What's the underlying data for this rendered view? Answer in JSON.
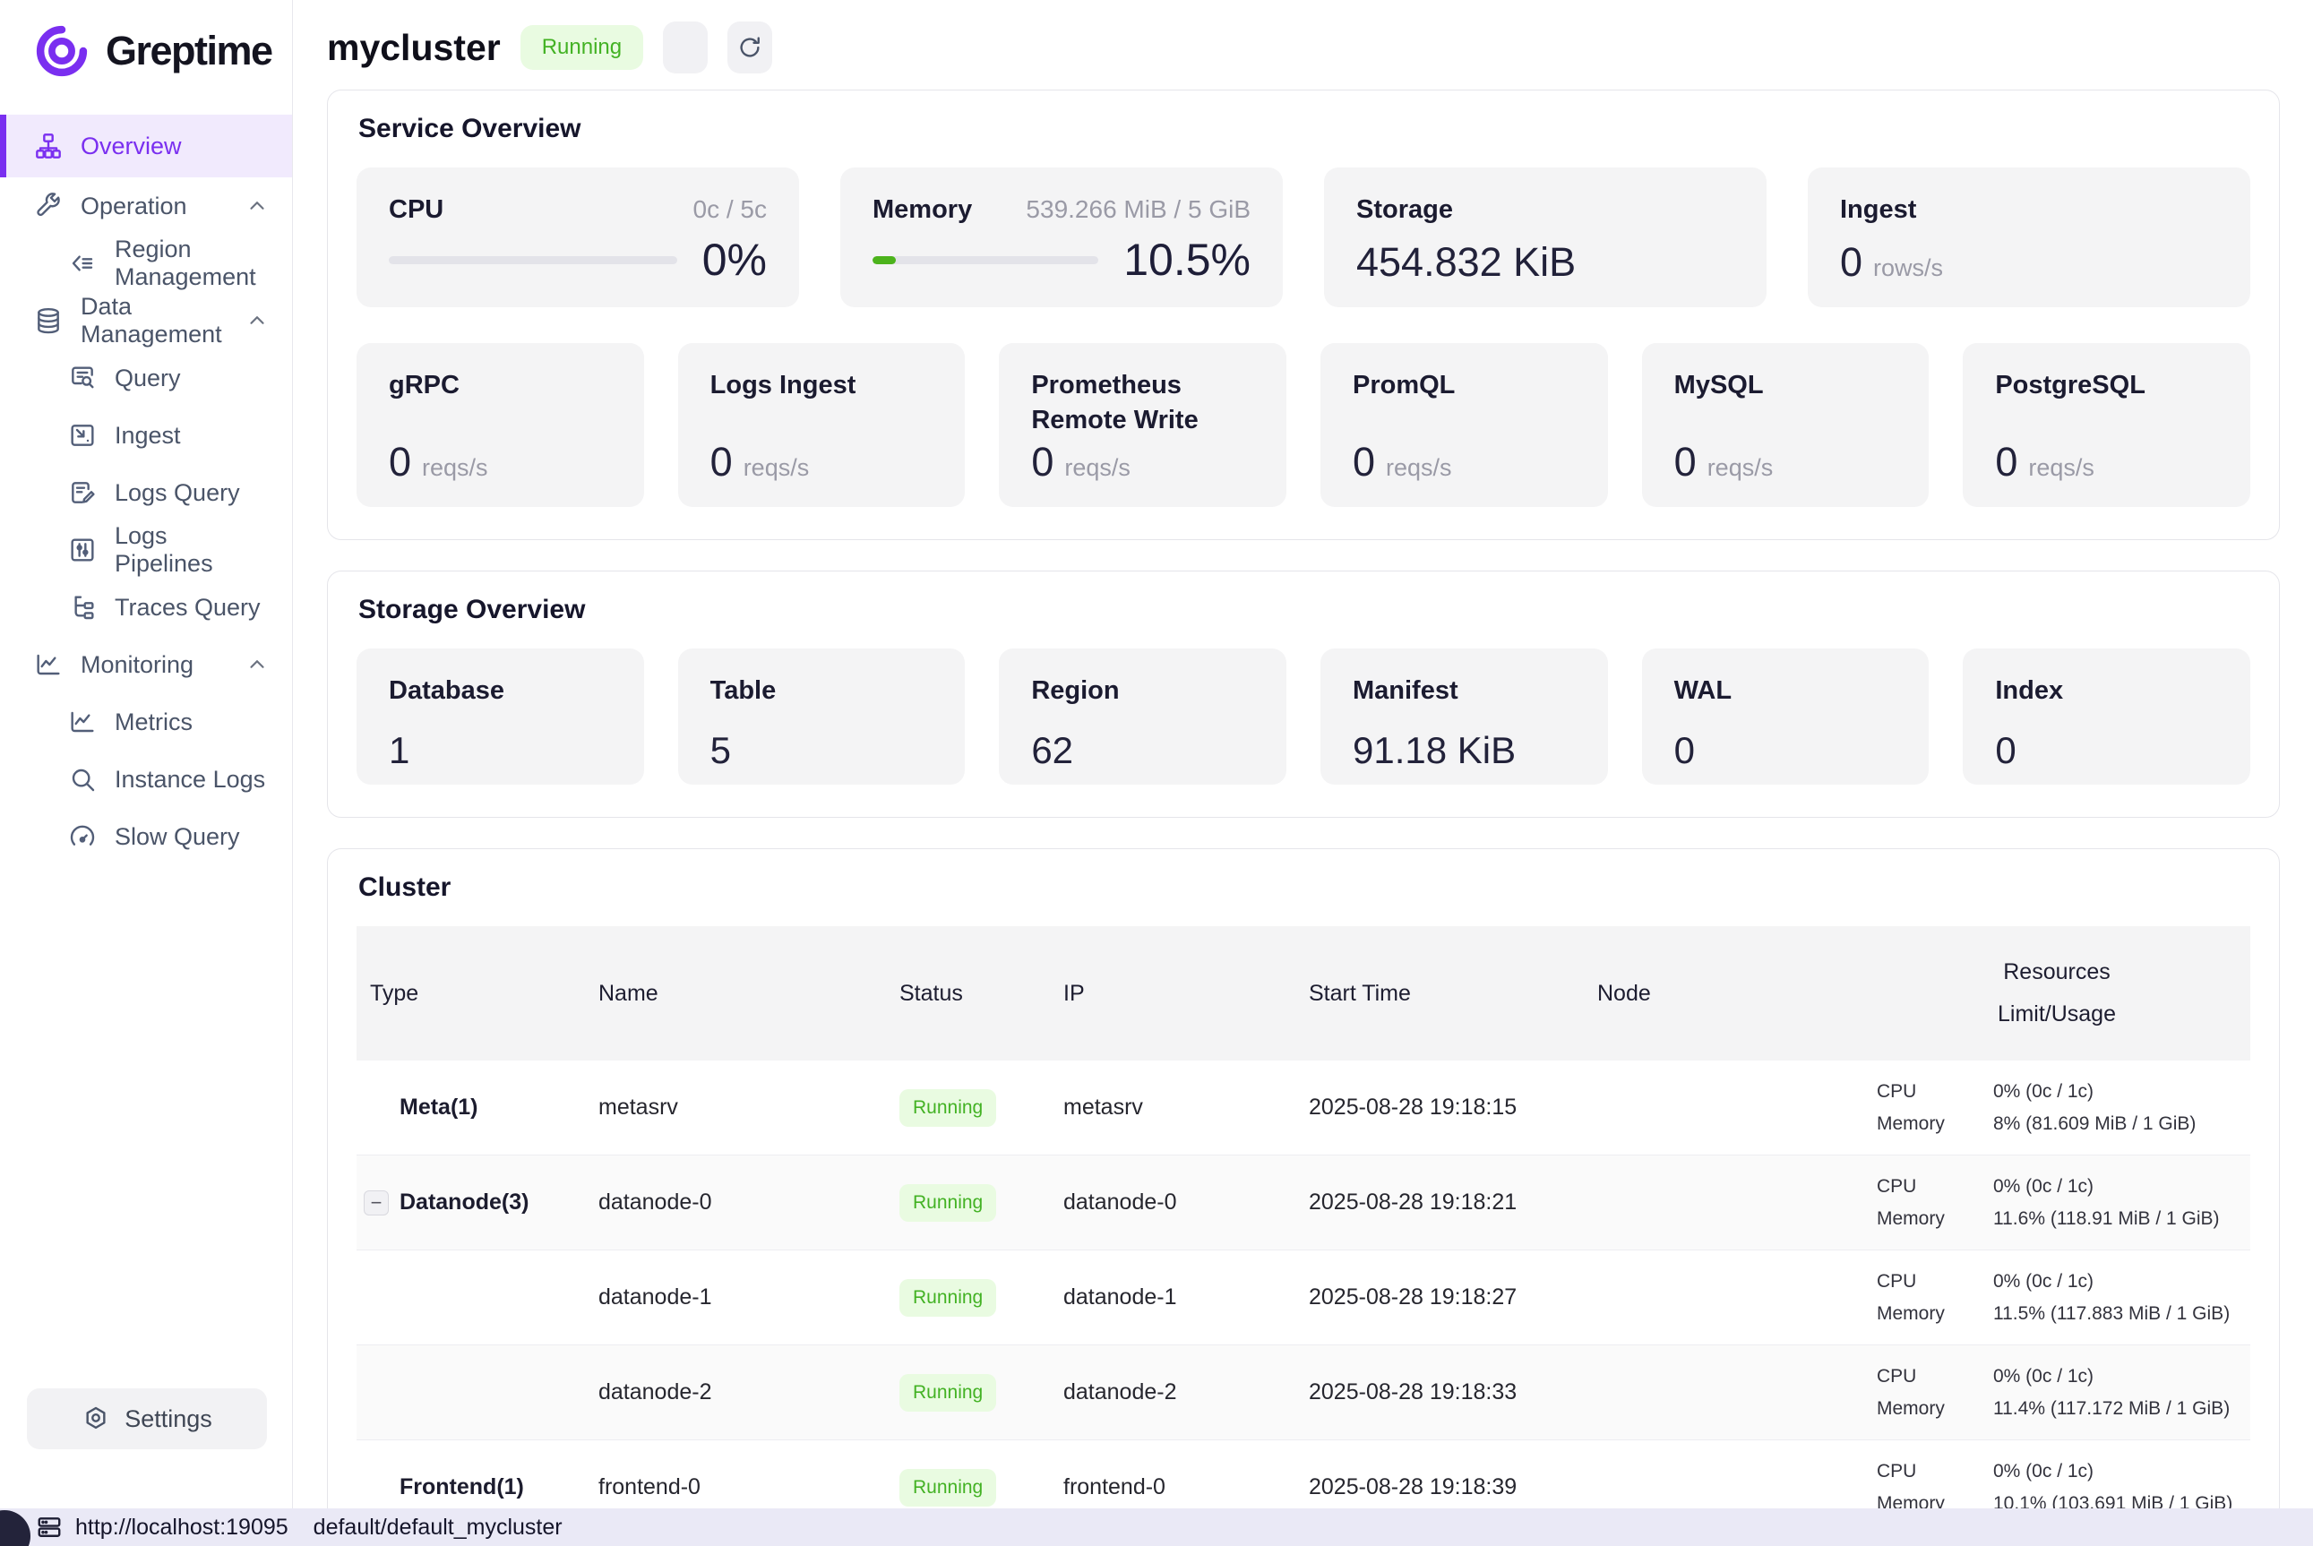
{
  "colors": {
    "accent_purple": "#7a2ff0",
    "accent_purple_bg": "#f1eafd",
    "status_green": "#43b224",
    "status_green_bg": "#e9fbe1",
    "progress_green": "#4cb31c",
    "card_bg": "#f4f4f5",
    "statusbar_bg": "#eae9f6"
  },
  "sidebar": {
    "logo_text": "Greptime",
    "logo_icon": "greptime-spiral-icon",
    "items": [
      {
        "label": "Overview",
        "icon": "sitemap-icon"
      },
      {
        "label": "Operation",
        "icon": "wrench-icon"
      },
      {
        "label": "Region Management",
        "icon": "region-icon"
      },
      {
        "label": "Data Management",
        "icon": "database-icon"
      },
      {
        "label": "Query",
        "icon": "doc-search-icon"
      },
      {
        "label": "Ingest",
        "icon": "ingest-icon"
      },
      {
        "label": "Logs Query",
        "icon": "doc-edit-icon"
      },
      {
        "label": "Logs Pipelines",
        "icon": "sliders-icon"
      },
      {
        "label": "Traces Query",
        "icon": "trace-tree-icon"
      },
      {
        "label": "Monitoring",
        "icon": "line-chart-icon"
      },
      {
        "label": "Metrics",
        "icon": "line-chart-icon"
      },
      {
        "label": "Instance Logs",
        "icon": "search-icon"
      },
      {
        "label": "Slow Query",
        "icon": "gauge-icon"
      }
    ],
    "settings_label": "Settings"
  },
  "header": {
    "title": "mycluster",
    "status_badge": "Running"
  },
  "service_overview": {
    "title": "Service Overview",
    "gauges": [
      {
        "title": "CPU",
        "limit": "0c / 5c",
        "percent_text": "0%",
        "percent": 0
      },
      {
        "title": "Memory",
        "limit": "539.266 MiB / 5 GiB",
        "percent_text": "10.5%",
        "percent": 10.5
      }
    ],
    "stats": [
      {
        "title": "Storage",
        "value": "454.832 KiB",
        "unit": ""
      },
      {
        "title": "Ingest",
        "value": "0",
        "unit": "rows/s"
      }
    ],
    "rates": [
      {
        "title": "gRPC",
        "value": "0",
        "unit": "reqs/s"
      },
      {
        "title": "Logs Ingest",
        "value": "0",
        "unit": "reqs/s"
      },
      {
        "title": "Prometheus Remote Write",
        "value": "0",
        "unit": "reqs/s"
      },
      {
        "title": "PromQL",
        "value": "0",
        "unit": "reqs/s"
      },
      {
        "title": "MySQL",
        "value": "0",
        "unit": "reqs/s"
      },
      {
        "title": "PostgreSQL",
        "value": "0",
        "unit": "reqs/s"
      }
    ]
  },
  "storage_overview": {
    "title": "Storage Overview",
    "cards": [
      {
        "title": "Database",
        "value": "1"
      },
      {
        "title": "Table",
        "value": "5"
      },
      {
        "title": "Region",
        "value": "62"
      },
      {
        "title": "Manifest",
        "value": "91.18 KiB"
      },
      {
        "title": "WAL",
        "value": "0"
      },
      {
        "title": "Index",
        "value": "0"
      }
    ]
  },
  "cluster": {
    "title": "Cluster",
    "columns": {
      "type": "Type",
      "name": "Name",
      "status": "Status",
      "ip": "IP",
      "start_time": "Start Time",
      "node": "Node",
      "resources": "Resources",
      "limit_usage": "Limit/Usage"
    },
    "rows": [
      {
        "type": "Meta(1)",
        "name": "metasrv",
        "status": "Running",
        "ip": "metasrv",
        "start_time": "2025-08-28 19:18:15",
        "node": "",
        "cpu_label": "CPU",
        "cpu_value": "0% (0c / 1c)",
        "memory_label": "Memory",
        "memory_value": "8% (81.609 MiB / 1 GiB)"
      },
      {
        "type": "Datanode(3)",
        "name": "datanode-0",
        "status": "Running",
        "ip": "datanode-0",
        "start_time": "2025-08-28 19:18:21",
        "node": "",
        "cpu_label": "CPU",
        "cpu_value": "0% (0c / 1c)",
        "memory_label": "Memory",
        "memory_value": "11.6% (118.91 MiB / 1 GiB)"
      },
      {
        "type": "",
        "name": "datanode-1",
        "status": "Running",
        "ip": "datanode-1",
        "start_time": "2025-08-28 19:18:27",
        "node": "",
        "cpu_label": "CPU",
        "cpu_value": "0% (0c / 1c)",
        "memory_label": "Memory",
        "memory_value": "11.5% (117.883 MiB / 1 GiB)"
      },
      {
        "type": "",
        "name": "datanode-2",
        "status": "Running",
        "ip": "datanode-2",
        "start_time": "2025-08-28 19:18:33",
        "node": "",
        "cpu_label": "CPU",
        "cpu_value": "0% (0c / 1c)",
        "memory_label": "Memory",
        "memory_value": "11.4% (117.172 MiB / 1 GiB)"
      },
      {
        "type": "Frontend(1)",
        "name": "frontend-0",
        "status": "Running",
        "ip": "frontend-0",
        "start_time": "2025-08-28 19:18:39",
        "node": "",
        "cpu_label": "CPU",
        "cpu_value": "0% (0c / 1c)",
        "memory_label": "Memory",
        "memory_value": "10.1% (103.691 MiB / 1 GiB)"
      }
    ],
    "toggle_minus": "−"
  },
  "statusbar": {
    "url": "http://localhost:19095",
    "database": "default/default_mycluster",
    "icon": "server-icon"
  }
}
